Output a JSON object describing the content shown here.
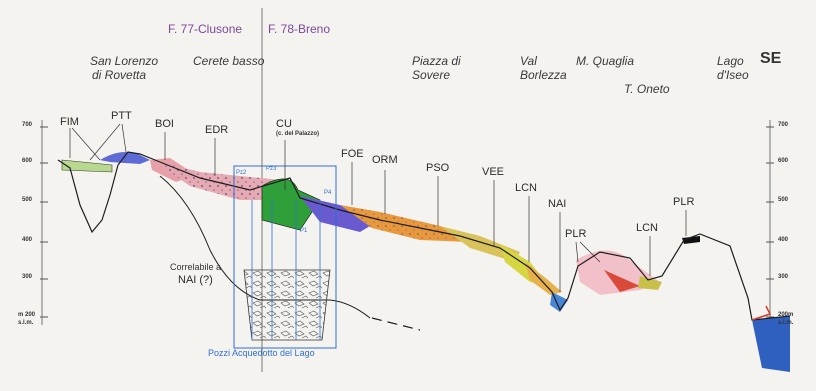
{
  "sheets": {
    "left": "F. 77-Clusone",
    "right": "F. 78-Breno"
  },
  "direction": "SE",
  "places": [
    {
      "id": "san-lorenzo",
      "text": "San Lorenzo",
      "text2": "di Rovetta"
    },
    {
      "id": "cerete",
      "text": "Cerete basso",
      "text2": ""
    },
    {
      "id": "sovere",
      "text": "Piazza di",
      "text2": "Sovere"
    },
    {
      "id": "borlezza",
      "text": "Val",
      "text2": "Borlezza"
    },
    {
      "id": "quaglia",
      "text": "M. Quaglia",
      "text2": ""
    },
    {
      "id": "oneto",
      "text": "T. Oneto",
      "text2": ""
    },
    {
      "id": "iseo",
      "text": "Lago",
      "text2": "d'Iseo"
    }
  ],
  "units": [
    "FIM",
    "PTT",
    "BOI",
    "EDR",
    "CU",
    "FOE",
    "ORM",
    "PSO",
    "VEE",
    "LCN",
    "NAI",
    "PLR",
    "LCN",
    "PLR"
  ],
  "cu_note": "(c. del Palazzo)",
  "axis_left": [
    "700",
    "600",
    "500",
    "400",
    "300",
    "m 200",
    "s.l.m."
  ],
  "axis_right": [
    "700",
    "600",
    "500",
    "400",
    "300",
    "200m",
    "s.l.m."
  ],
  "well_labels": [
    "Pz2",
    "Pz3",
    "P4",
    "P1"
  ],
  "nai_note": "Correlabile a",
  "nai_label": "NAI (?)",
  "well_caption": "Pozzi Acquedotto del Lago",
  "colors": {
    "profile": "#1d1d1d",
    "well": "#2f6fd6",
    "lake": "#2f5fbf",
    "sheet": "#7a4a9a"
  }
}
